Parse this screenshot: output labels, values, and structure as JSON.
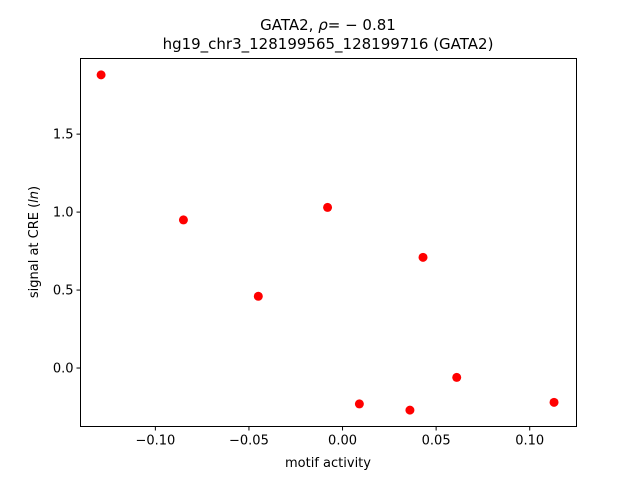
{
  "chart_data": {
    "type": "scatter",
    "title_parts": {
      "prefix": "GATA2, ",
      "rho_symbol": "ρ",
      "equals_value": "= − 0.81"
    },
    "subtitle": "hg19_chr3_128199565_128199716 (GATA2)",
    "xlabel": "motif activity",
    "ylabel_parts": {
      "prefix": "signal at CRE (",
      "italic": "ln",
      "suffix": ")"
    },
    "xlim": [
      -0.14,
      0.125
    ],
    "ylim": [
      -0.375,
      1.985
    ],
    "xticks": [
      {
        "value": -0.1,
        "label": "−0.10"
      },
      {
        "value": -0.05,
        "label": "−0.05"
      },
      {
        "value": 0.0,
        "label": "0.00"
      },
      {
        "value": 0.05,
        "label": "0.05"
      },
      {
        "value": 0.1,
        "label": "0.10"
      }
    ],
    "yticks": [
      {
        "value": 0.0,
        "label": "0.0"
      },
      {
        "value": 0.5,
        "label": "0.5"
      },
      {
        "value": 1.0,
        "label": "1.0"
      },
      {
        "value": 1.5,
        "label": "1.5"
      }
    ],
    "marker_color": "#ff0000",
    "grid": false,
    "points": [
      {
        "x": -0.129,
        "y": 1.88
      },
      {
        "x": -0.085,
        "y": 0.95
      },
      {
        "x": -0.045,
        "y": 0.46
      },
      {
        "x": -0.008,
        "y": 1.03
      },
      {
        "x": 0.009,
        "y": -0.23
      },
      {
        "x": 0.036,
        "y": -0.27
      },
      {
        "x": 0.043,
        "y": 0.71
      },
      {
        "x": 0.061,
        "y": -0.06
      },
      {
        "x": 0.113,
        "y": -0.22
      }
    ]
  }
}
